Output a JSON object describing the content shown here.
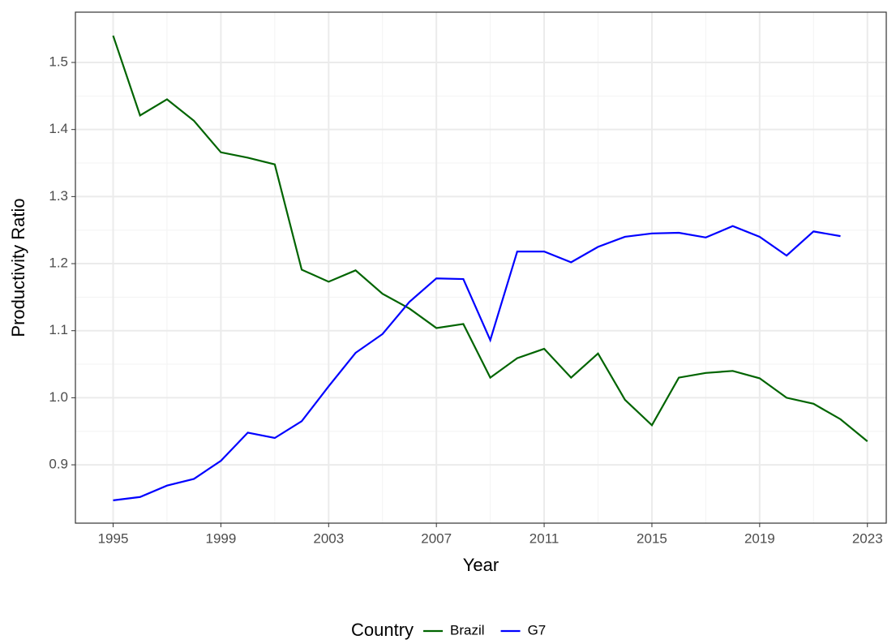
{
  "chart_data": {
    "type": "line",
    "x_label": "Year",
    "y_label": "Productivity Ratio",
    "legend_title": "Country",
    "legend_position": "bottom",
    "x": [
      1995,
      1996,
      1997,
      1998,
      1999,
      2000,
      2001,
      2002,
      2003,
      2004,
      2005,
      2006,
      2007,
      2008,
      2009,
      2010,
      2011,
      2012,
      2013,
      2014,
      2015,
      2016,
      2017,
      2018,
      2019,
      2020,
      2021,
      2022,
      2023
    ],
    "series": [
      {
        "name": "Brazil",
        "color": "#006400",
        "values": [
          1.54,
          1.421,
          1.445,
          1.413,
          1.366,
          1.358,
          1.348,
          1.191,
          1.173,
          1.19,
          1.155,
          1.133,
          1.104,
          1.11,
          1.03,
          1.059,
          1.073,
          1.03,
          1.066,
          0.997,
          0.959,
          1.03,
          1.037,
          1.04,
          1.029,
          1.0,
          0.991,
          0.968,
          0.935
        ]
      },
      {
        "name": "G7",
        "color": "#0000ff",
        "values": [
          0.847,
          0.852,
          0.869,
          0.879,
          0.906,
          0.948,
          0.94,
          0.965,
          1.017,
          1.067,
          1.095,
          1.143,
          1.178,
          1.177,
          1.086,
          1.218,
          1.218,
          1.202,
          1.225,
          1.24,
          1.245,
          1.246,
          1.239,
          1.256,
          1.24,
          1.212,
          1.248,
          1.241,
          null
        ]
      }
    ],
    "xlim": [
      1993.6,
      2023.7
    ],
    "xticks": [
      1995,
      1999,
      2003,
      2007,
      2011,
      2015,
      2019,
      2023
    ],
    "ylim": [
      0.813,
      1.575
    ],
    "yticks": [
      0.9,
      {
        "value": 1,
        "label": "1.0"
      },
      1.1,
      1.2,
      1.3,
      1.4,
      1.5
    ],
    "grid": true,
    "minor_grid": true
  }
}
